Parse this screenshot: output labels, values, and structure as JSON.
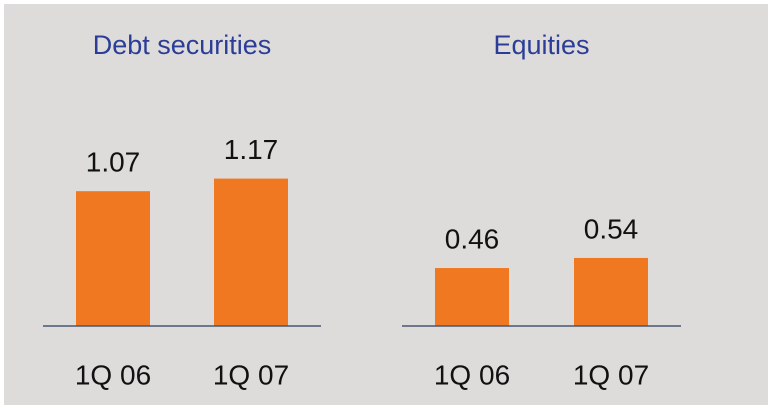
{
  "chart_data": [
    {
      "type": "bar",
      "title": "Debt securities",
      "categories": [
        "1Q 06",
        "1Q 07"
      ],
      "values": [
        1.07,
        1.17
      ],
      "color": "#f07820"
    },
    {
      "type": "bar",
      "title": "Equities",
      "categories": [
        "1Q 06",
        "1Q 07"
      ],
      "values": [
        0.46,
        0.54
      ],
      "color": "#f07820"
    }
  ]
}
